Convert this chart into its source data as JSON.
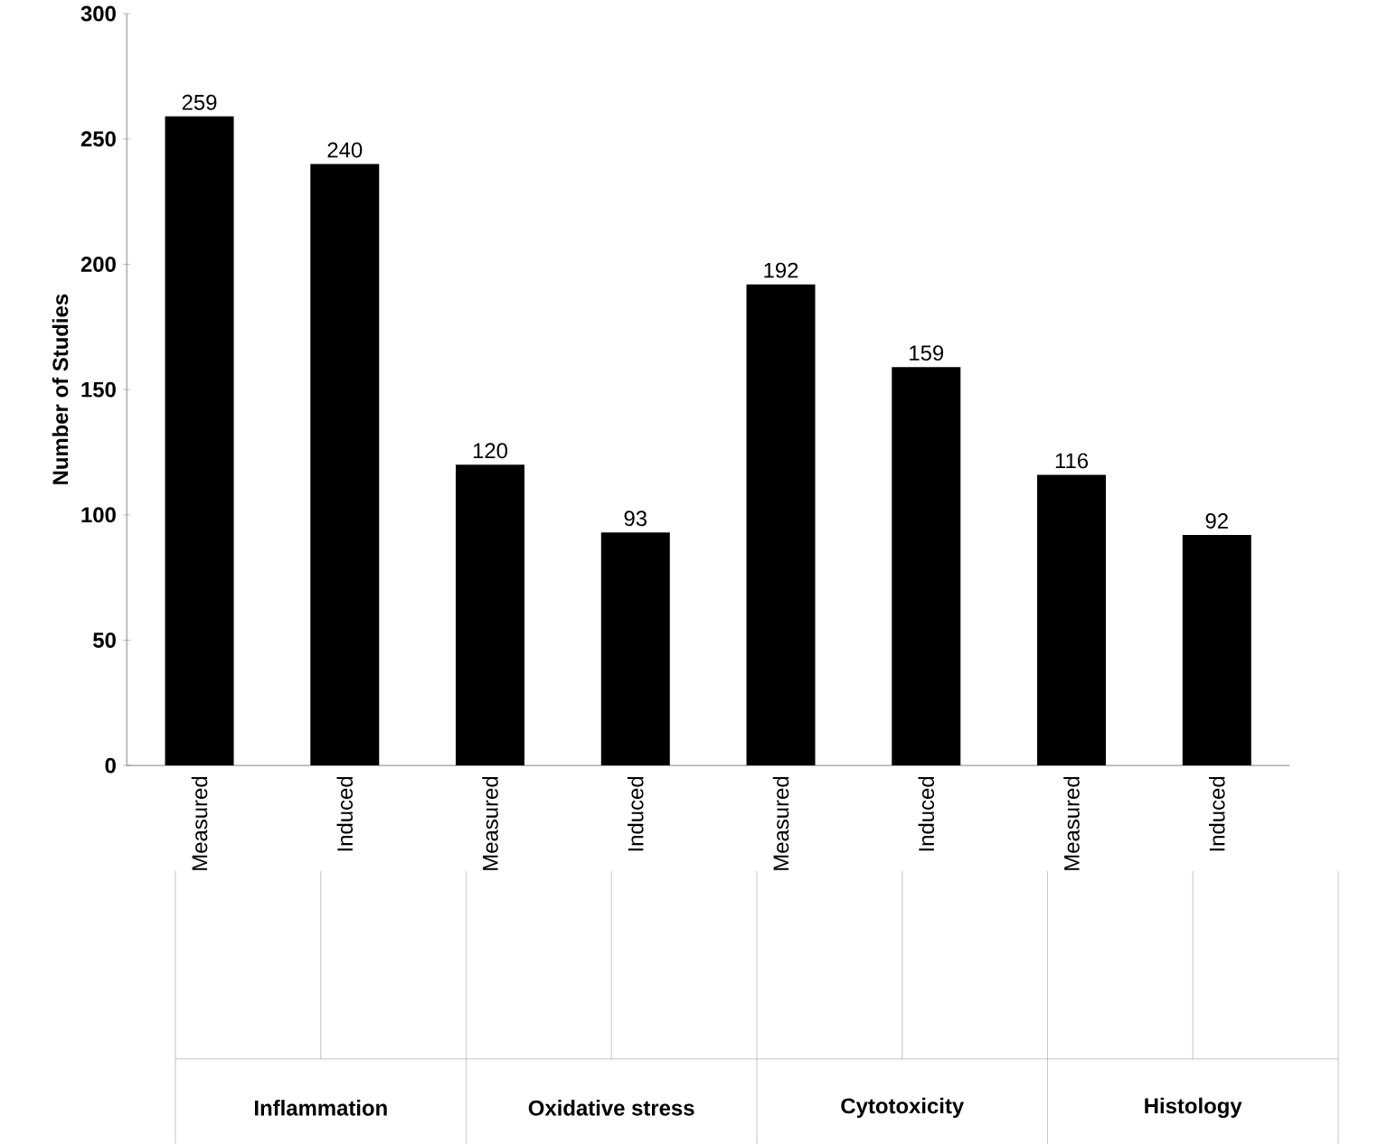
{
  "chart_data": {
    "type": "bar",
    "ylabel": "Number of Studies",
    "categories": [
      "Measured",
      "Induced",
      "Measured",
      "Induced",
      "Measured",
      "Induced",
      "Measured",
      "Induced"
    ],
    "values": [
      259,
      240,
      120,
      93,
      192,
      159,
      116,
      92
    ],
    "color": "#000000",
    "ylim": [
      0,
      300
    ],
    "yticks": [
      0,
      50,
      100,
      150,
      200,
      250,
      300
    ],
    "data_labels": true,
    "grid": false,
    "annotations": [
      "Inflammation",
      "Oxidative stress",
      "Cytotoxicity",
      "Histology"
    ]
  }
}
